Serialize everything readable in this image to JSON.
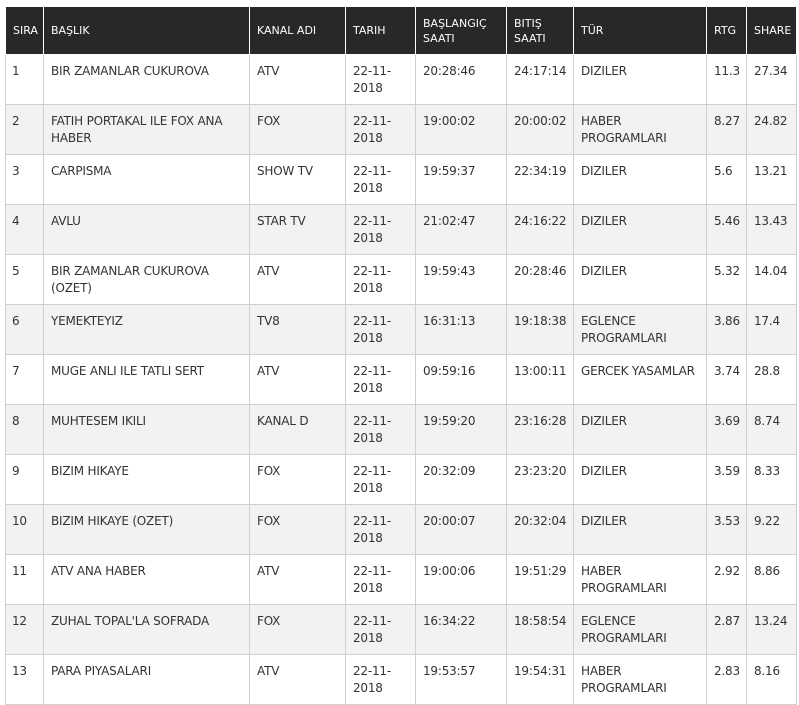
{
  "columns": [
    "SIRA",
    "BAŞLIK",
    "KANAL ADI",
    "TARIH",
    "BAŞLANGIÇ SAATI",
    "BITIŞ SAATI",
    "TÜR",
    "RTG",
    "SHARE"
  ],
  "rows": [
    [
      "1",
      "BIR ZAMANLAR CUKUROVA",
      "ATV",
      "22-11-2018",
      "20:28:46",
      "24:17:14",
      "DIZILER",
      "11.3",
      "27.34"
    ],
    [
      "2",
      "FATIH PORTAKAL ILE FOX ANA HABER",
      "FOX",
      "22-11-2018",
      "19:00:02",
      "20:00:02",
      "HABER PROGRAMLARI",
      "8.27",
      "24.82"
    ],
    [
      "3",
      "CARPISMA",
      "SHOW TV",
      "22-11-2018",
      "19:59:37",
      "22:34:19",
      "DIZILER",
      "5.6",
      "13.21"
    ],
    [
      "4",
      "AVLU",
      "STAR TV",
      "22-11-2018",
      "21:02:47",
      "24:16:22",
      "DIZILER",
      "5.46",
      "13.43"
    ],
    [
      "5",
      "BIR ZAMANLAR CUKUROVA (OZET)",
      "ATV",
      "22-11-2018",
      "19:59:43",
      "20:28:46",
      "DIZILER",
      "5.32",
      "14.04"
    ],
    [
      "6",
      "YEMEKTEYIZ",
      "TV8",
      "22-11-2018",
      "16:31:13",
      "19:18:38",
      "EGLENCE PROGRAMLARI",
      "3.86",
      "17.4"
    ],
    [
      "7",
      "MUGE ANLI ILE TATLI SERT",
      "ATV",
      "22-11-2018",
      "09:59:16",
      "13:00:11",
      "GERCEK YASAMLAR",
      "3.74",
      "28.8"
    ],
    [
      "8",
      "MUHTESEM IKILI",
      "KANAL D",
      "22-11-2018",
      "19:59:20",
      "23:16:28",
      "DIZILER",
      "3.69",
      "8.74"
    ],
    [
      "9",
      "BIZIM HIKAYE",
      "FOX",
      "22-11-2018",
      "20:32:09",
      "23:23:20",
      "DIZILER",
      "3.59",
      "8.33"
    ],
    [
      "10",
      "BIZIM HIKAYE (OZET)",
      "FOX",
      "22-11-2018",
      "20:00:07",
      "20:32:04",
      "DIZILER",
      "3.53",
      "9.22"
    ],
    [
      "11",
      "ATV ANA HABER",
      "ATV",
      "22-11-2018",
      "19:00:06",
      "19:51:29",
      "HABER PROGRAMLARI",
      "2.92",
      "8.86"
    ],
    [
      "12",
      "ZUHAL TOPAL'LA SOFRADA",
      "FOX",
      "22-11-2018",
      "16:34:22",
      "18:58:54",
      "EGLENCE PROGRAMLARI",
      "2.87",
      "13.24"
    ],
    [
      "13",
      "PARA PIYASALARI",
      "ATV",
      "22-11-2018",
      "19:53:57",
      "19:54:31",
      "HABER PROGRAMLARI",
      "2.83",
      "8.16"
    ]
  ]
}
